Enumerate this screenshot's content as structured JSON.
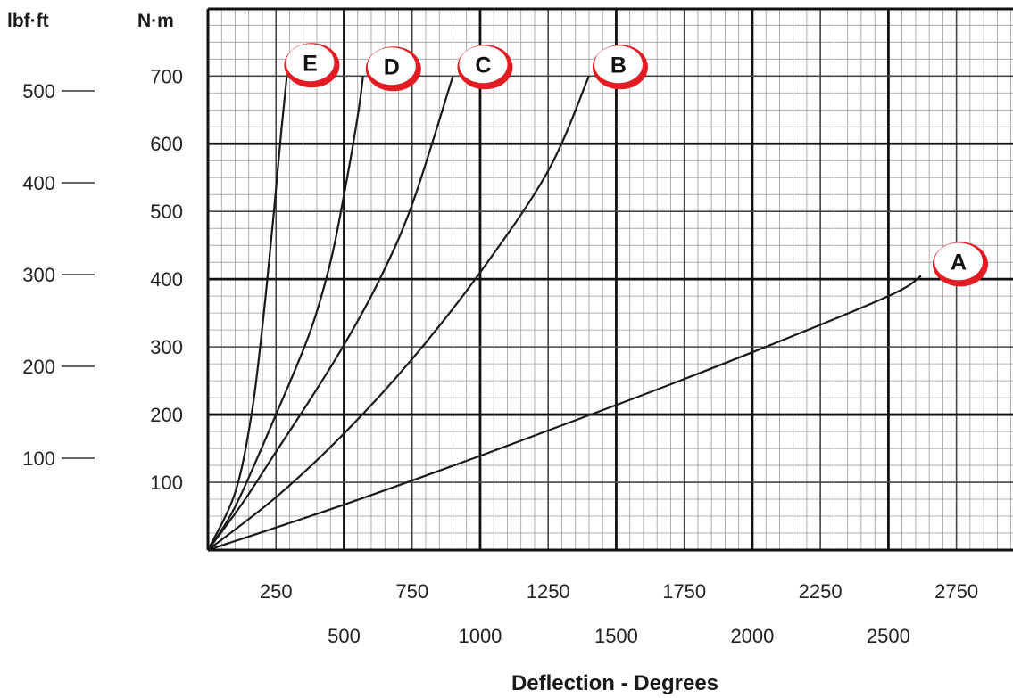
{
  "chart_data": {
    "type": "line",
    "title": "",
    "xlabel": "Deflection - Degrees",
    "ylabel_left": "lbf·ft",
    "ylabel_right": "N·m",
    "x_range": [
      0,
      3000
    ],
    "y_range_nm": [
      0,
      800
    ],
    "x_ticks_top": [
      "250",
      "750",
      "1250",
      "1750",
      "2250",
      "2750"
    ],
    "x_ticks_bottom": [
      "500",
      "1000",
      "1500",
      "2000",
      "2500"
    ],
    "y_ticks_nm": [
      "100",
      "200",
      "300",
      "400",
      "500",
      "600",
      "700"
    ],
    "y_ticks_lbfft": [
      "100",
      "200",
      "300",
      "400",
      "500"
    ],
    "grid": true,
    "series": [
      {
        "name": "A",
        "color": "#1a1a1a",
        "points": [
          [
            0,
            0
          ],
          [
            500,
            67
          ],
          [
            1000,
            139
          ],
          [
            1500,
            214
          ],
          [
            2000,
            292
          ],
          [
            2500,
            375
          ],
          [
            2620,
            405
          ]
        ]
      },
      {
        "name": "B",
        "color": "#1a1a1a",
        "points": [
          [
            0,
            0
          ],
          [
            250,
            78
          ],
          [
            500,
            172
          ],
          [
            750,
            282
          ],
          [
            1000,
            410
          ],
          [
            1250,
            560
          ],
          [
            1400,
            700
          ]
        ]
      },
      {
        "name": "C",
        "color": "#1a1a1a",
        "points": [
          [
            0,
            0
          ],
          [
            125,
            68
          ],
          [
            250,
            145
          ],
          [
            375,
            222
          ],
          [
            500,
            303
          ],
          [
            625,
            395
          ],
          [
            750,
            510
          ],
          [
            900,
            700
          ]
        ]
      },
      {
        "name": "D",
        "color": "#1a1a1a",
        "points": [
          [
            0,
            0
          ],
          [
            100,
            64
          ],
          [
            250,
            200
          ],
          [
            375,
            322
          ],
          [
            450,
            425
          ],
          [
            500,
            525
          ],
          [
            550,
            640
          ],
          [
            570,
            700
          ]
        ]
      },
      {
        "name": "E",
        "color": "#1a1a1a",
        "points": [
          [
            0,
            0
          ],
          [
            100,
            85
          ],
          [
            160,
            200
          ],
          [
            200,
            330
          ],
          [
            240,
            490
          ],
          [
            270,
            620
          ],
          [
            290,
            700
          ]
        ]
      }
    ],
    "series_label_color": "#e31b23"
  }
}
